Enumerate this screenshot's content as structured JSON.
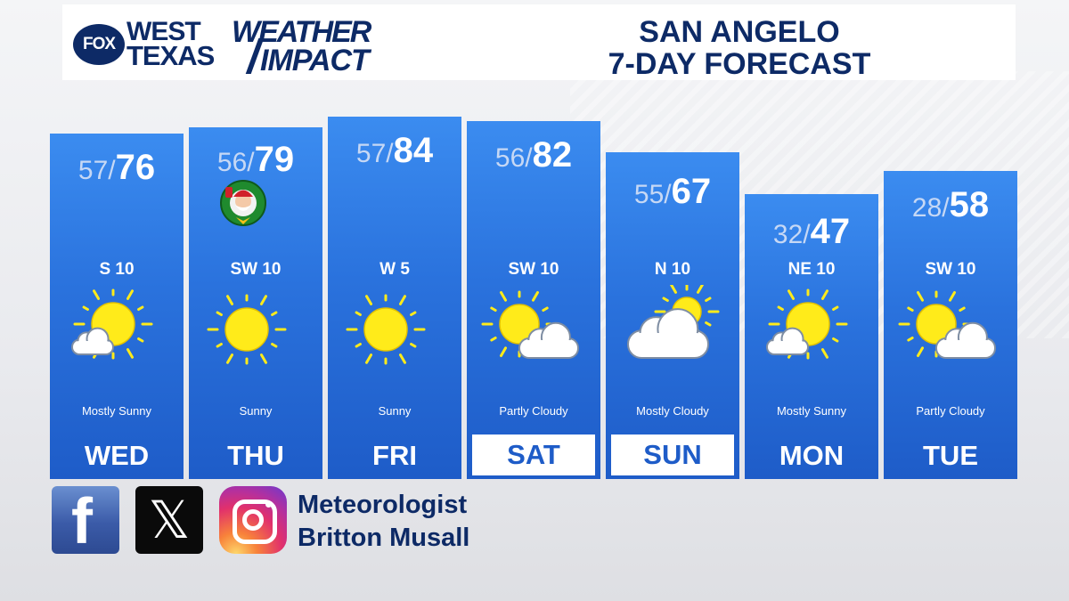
{
  "header": {
    "fox_badge": "FOX",
    "brand_line1": "WEST",
    "brand_line2": "TEXAS",
    "brand_weather": "WEATHER",
    "brand_impact": "IMPACT",
    "title_line1": "SAN ANGELO",
    "title_line2": "7-DAY FORECAST"
  },
  "days": [
    {
      "day": "WED",
      "low": "57",
      "high": "76",
      "wind": "S 10",
      "condition": "Mostly Sunny",
      "icon": "mostly-sunny-icon",
      "weekend": false
    },
    {
      "day": "THU",
      "low": "56",
      "high": "79",
      "wind": "SW 10",
      "condition": "Sunny",
      "icon": "sunny-icon",
      "weekend": false,
      "badge": "santa-wreath-icon"
    },
    {
      "day": "FRI",
      "low": "57",
      "high": "84",
      "wind": "W 5",
      "condition": "Sunny",
      "icon": "sunny-icon",
      "weekend": false
    },
    {
      "day": "SAT",
      "low": "56",
      "high": "82",
      "wind": "SW 10",
      "condition": "Partly Cloudy",
      "icon": "partly-cloudy-icon",
      "weekend": true
    },
    {
      "day": "SUN",
      "low": "55",
      "high": "67",
      "wind": "N 10",
      "condition": "Mostly Cloudy",
      "icon": "mostly-cloudy-icon",
      "weekend": true
    },
    {
      "day": "MON",
      "low": "32",
      "high": "47",
      "wind": "NE 10",
      "condition": "Mostly Sunny",
      "icon": "mostly-sunny-icon",
      "weekend": false
    },
    {
      "day": "TUE",
      "low": "28",
      "high": "58",
      "wind": "SW 10",
      "condition": "Partly Cloudy",
      "icon": "partly-cloudy-icon",
      "weekend": false
    }
  ],
  "social": {
    "facebook_icon": "f",
    "x_icon": "𝕏",
    "meteorologist_line1": "Meteorologist",
    "meteorologist_line2": "Britton Musall"
  },
  "colors": {
    "brand_navy": "#0d2a66",
    "column_blue_top": "#3b8cf0",
    "column_blue_bottom": "#1e5cc8",
    "sun_yellow": "#ffeb1a"
  }
}
